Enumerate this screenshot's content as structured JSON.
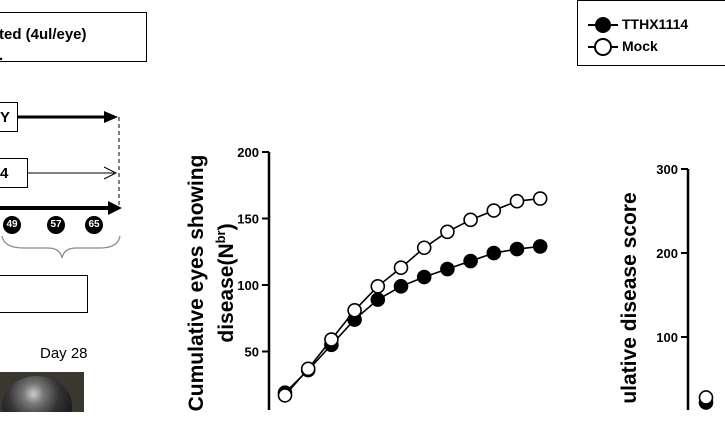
{
  "left_panel": {
    "dose_text": "ted (4ul/eye)",
    "dose_text_line2": ".",
    "arrow_label_1": "Y",
    "arrow_label_2": "4",
    "day_markers": [
      "49",
      "57",
      "65"
    ],
    "day_label": "Day 28",
    "colors": {
      "marker_fill": "#000",
      "marker_text": "#fff"
    }
  },
  "legend": {
    "items": [
      {
        "label": "TTHX1114",
        "marker": "filled-circle"
      },
      {
        "label": "Mock",
        "marker": "open-circle"
      }
    ]
  },
  "chart_data": [
    {
      "type": "line",
      "ylabel_line1": "Cumulative eyes showing",
      "ylabel_line2": "disease(N",
      "ylabel_sup": "br",
      "ylabel_close": ")",
      "yticks": [
        "50",
        "100",
        "150",
        "200"
      ],
      "ylim": [
        0,
        200
      ],
      "series": [
        {
          "name": "TTHX1114",
          "marker": "filled",
          "values": [
            19,
            36,
            55,
            74,
            89,
            99,
            106,
            112,
            118,
            124,
            127,
            129
          ]
        },
        {
          "name": "Mock",
          "marker": "open",
          "values": [
            17,
            37,
            59,
            81,
            99,
            113,
            128,
            140,
            149,
            156,
            163,
            165
          ]
        }
      ]
    },
    {
      "type": "line",
      "ylabel": "ulative disease score",
      "yticks": [
        "100",
        "200",
        "300"
      ],
      "ylim": [
        0,
        300
      ],
      "series": [
        {
          "name": "TTHX1114",
          "marker": "filled",
          "values": [
            22
          ]
        },
        {
          "name": "Mock",
          "marker": "open",
          "values": [
            28
          ]
        }
      ]
    }
  ]
}
